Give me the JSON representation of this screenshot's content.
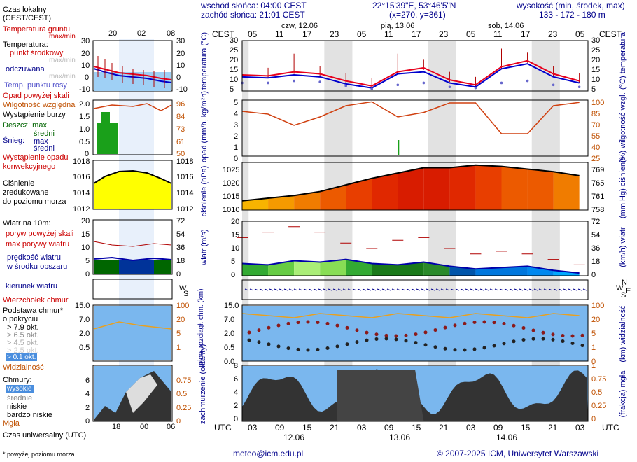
{
  "header": {
    "sunrise": "wschód słońca: 04:00 CEST",
    "sunset": "zachód słońca: 21:01 CEST",
    "coords": "22°15'39\"E, 53°46'5\"N",
    "grid": "(x=270, y=361)",
    "height_title": "wysokość (min, środek, max)",
    "height_values": "133 - 172 - 180 m"
  },
  "legend": {
    "local_time": "Czas lokalny",
    "local_time2": "(CEST/CEST)",
    "ground_temp": "Temperatura gruntu",
    "ground_temp2": "max/min",
    "temperature": "Temperatura:",
    "mid_point": "punkt środkowy",
    "maxmin": "max/min",
    "perceived": "odczuwana",
    "dew": "Temp. punktu rosy",
    "precip_above": "Opad powyżej skali",
    "humidity": "Wilgotność względna",
    "storm": "Wystąpienie burzy",
    "rain": "Deszcz: max",
    "rain_mid": "średni",
    "snow": "Śnieg:",
    "snow_max": "max",
    "snow_mid": "średni",
    "precip_occ": "Wystąpienie opadu",
    "precip_occ2": "konwekcyjnego",
    "pressure1": "Ciśnienie",
    "pressure2": "zredukowane",
    "pressure3": "do poziomu morza",
    "wind_title": "Wiatr na 10m:",
    "gust_above": "poryw powyżej skali",
    "gust_max": "max porywy wiatru",
    "wind_speed": "prędkość wiatru",
    "wind_speed2": "w środku obszaru",
    "wind_dir": "kierunek wiatru",
    "cloud_top": "Wierzchołek chmur",
    "cloud_base": "Podstawa chmur*",
    "cloud_base2": "o pokryciu",
    "okt79": "> 7.9 okt.",
    "okt65": "> 6.5 okt.",
    "okt45": "> 4.5 okt.",
    "okt25": "> 2.5 okt.",
    "okt01": "> 0.1 okt.",
    "visibility": "Widzialność",
    "clouds": "Chmury:",
    "high": "wysokie",
    "middle": "średnie",
    "low": "niskie",
    "very_low": "bardzo niskie",
    "fog": "Mgła",
    "utc_time": "Czas uniwersalny (UTC)",
    "footnote": "* powyżej poziomu morza"
  },
  "mini": {
    "top_ticks": [
      "20",
      "02",
      "08"
    ],
    "bottom_ticks": [
      "18",
      "00",
      "06"
    ]
  },
  "main": {
    "cest": "CEST",
    "utc": "UTC",
    "days_top": [
      "czw, 12.06",
      "pią, 13.06",
      "sob, 14.06"
    ],
    "days_bottom": [
      "12.06",
      "13.06",
      "14.06"
    ],
    "cest_ticks": [
      "05",
      "11",
      "17",
      "23",
      "05",
      "11",
      "17",
      "23",
      "05",
      "11",
      "17",
      "23",
      "05"
    ],
    "utc_ticks": [
      "03",
      "09",
      "15",
      "21",
      "03",
      "09",
      "15",
      "21",
      "03",
      "09",
      "15",
      "21",
      "03"
    ]
  },
  "axes": {
    "temp_left": "temperatura (°C)",
    "temp_right": "(°C) temperatura",
    "precip_left": "opad (mm/h, kg/m²h)",
    "precip_right": "(%) wilgotność wzgl.",
    "press_left": "ciśnienie (hPa)",
    "press_right": "(mm Hg) ciśnienie",
    "wind_left": "wiatr (m/s)",
    "wind_right": "(km/h) wiatr",
    "cloudbase_left": "pion. rozciągł. chm. (km)",
    "cloudbase_right": "(km) widzialność",
    "cloud_left": "zachmurzenie (oktanty)",
    "cloud_right": "(frakcja) mgła"
  },
  "ticks": {
    "temp": [
      "30",
      "25",
      "20",
      "15",
      "10",
      "5"
    ],
    "temp_mini_l": [
      "30",
      "20",
      "10",
      "0",
      "-10"
    ],
    "temp_mini_r": [
      "30",
      "20",
      "10",
      "0",
      "-10"
    ],
    "precip": [
      "5",
      "4",
      "3",
      "2",
      "1",
      "0"
    ],
    "humidity": [
      "100",
      "85",
      "70",
      "55",
      "40",
      "25"
    ],
    "precip_mini": [
      "2.0",
      "1.5",
      "1.0",
      "0.5",
      "0"
    ],
    "hum_mini": [
      "96",
      "84",
      "73",
      "61",
      "50"
    ],
    "press": [
      "1025",
      "1020",
      "1015",
      "1010"
    ],
    "press_mm": [
      "769",
      "765",
      "761",
      "758"
    ],
    "press_mini": [
      "1018",
      "1016",
      "1014",
      "1012"
    ],
    "wind": [
      "20",
      "15",
      "10",
      "5",
      "0"
    ],
    "wind_kmh": [
      "72",
      "54",
      "36",
      "18",
      "0"
    ],
    "cb": [
      "15.0",
      "7.0",
      "2.0",
      "0.5",
      "0.0"
    ],
    "vis": [
      "100",
      "20",
      "5",
      "1",
      "0"
    ],
    "cloud": [
      "8",
      "6",
      "4",
      "2",
      "0"
    ],
    "fog": [
      "1",
      "0.75",
      "0.5",
      "0.25",
      "0"
    ],
    "compass": [
      "N",
      "W",
      "E",
      "S"
    ]
  },
  "footer": {
    "email": "meteo@icm.edu.pl",
    "copyright": "© 2007-2025 ICM, Uniwersytet Warszawski"
  },
  "colors": {
    "temp_red": "#e8001c",
    "temp_blue": "#0000cc",
    "humidity": "#d04010",
    "pressure_line": "#000000",
    "wind_line": "#0000aa",
    "night": "#e0e0e0",
    "cloud_bg": "#7ab7ee"
  },
  "chart_data": [
    {
      "type": "line",
      "title": "temperatura",
      "x_hours_utc": [
        0,
        6,
        12,
        18,
        24,
        30,
        36,
        42,
        48,
        54,
        60,
        66,
        72,
        78
      ],
      "series": [
        {
          "name": "punkt środkowy",
          "values": [
            13,
            12.5,
            14.5,
            13.5,
            10,
            7.5,
            14.5,
            16.5,
            10.5,
            8,
            17,
            20,
            13.5,
            10
          ]
        },
        {
          "name": "odczuwana",
          "values": [
            12,
            11.5,
            13,
            12,
            8.5,
            6.5,
            13.5,
            14.5,
            9,
            7,
            16,
            18.5,
            12,
            9
          ]
        },
        {
          "name": "Temp. punktu rosy",
          "values": [
            9,
            9,
            10,
            9.5,
            7.5,
            6,
            8,
            9,
            7,
            6.5,
            9,
            10,
            8,
            7
          ]
        }
      ],
      "ylim": [
        5,
        30
      ]
    },
    {
      "type": "line",
      "title": "opad / wilgotność",
      "series": [
        {
          "name": "Wilgotność względna",
          "values": [
            80,
            75,
            55,
            70,
            90,
            97,
            70,
            78,
            95,
            95,
            40,
            40,
            90,
            96
          ]
        }
      ],
      "ylim": [
        0,
        5
      ]
    },
    {
      "type": "area",
      "title": "ciśnienie",
      "series": [
        {
          "name": "Ciśnienie",
          "values": [
            1013.5,
            1014.5,
            1015.5,
            1017,
            1019.5,
            1022,
            1024,
            1026,
            1026,
            1027,
            1026.5,
            1025.5,
            1024.5,
            1023
          ]
        }
      ],
      "ylim": [
        1010,
        1028
      ]
    },
    {
      "type": "area",
      "title": "wiatr",
      "series": [
        {
          "name": "prędkość wiatru",
          "values": [
            4.5,
            4,
            5.5,
            5,
            6,
            4.5,
            4,
            5,
            3.5,
            2.5,
            3,
            3.5,
            2,
            1
          ]
        },
        {
          "name": "max porywy wiatru",
          "values": [
            14,
            16,
            18,
            16,
            12,
            10,
            13,
            14,
            10,
            8,
            9,
            8,
            6,
            4
          ]
        }
      ],
      "ylim": [
        0,
        20
      ]
    }
  ]
}
